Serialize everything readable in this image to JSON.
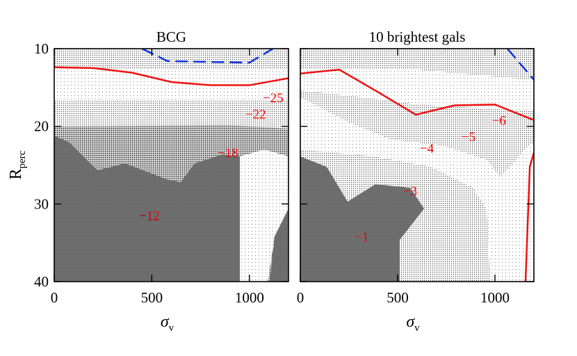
{
  "chart_data": [
    {
      "type": "contour",
      "title": "BCG",
      "xlabel_symbol": "σ",
      "xlabel_subscript": "v",
      "ylabel_main": "R",
      "ylabel_subscript": "perc",
      "xlim": [
        0,
        1200
      ],
      "ylim": [
        40,
        10
      ],
      "xticks": [
        0,
        500,
        1000
      ],
      "yticks": [
        10,
        20,
        30,
        40
      ],
      "show_ytick_labels": true,
      "series": [
        {
          "color": "#ee1111",
          "style": "solid",
          "x": [
            0,
            200,
            400,
            600,
            800,
            1000,
            1200
          ],
          "values": [
            12.4,
            12.5,
            13.1,
            14.3,
            14.7,
            14.7,
            13.8
          ]
        },
        {
          "color": "#1133dd",
          "style": "dashed",
          "x": [
            450,
            580,
            1000,
            1120
          ],
          "values": [
            10,
            11.6,
            11.8,
            10
          ]
        }
      ],
      "annotations": [
        {
          "text": "−25",
          "x": 1121,
          "y": 16.5
        },
        {
          "text": "−22",
          "x": 1032,
          "y": 18.6
        },
        {
          "text": "−18",
          "x": 890,
          "y": 23.6
        },
        {
          "text": "−12",
          "x": 487,
          "y": 31.7
        }
      ]
    },
    {
      "type": "contour",
      "title": "10 brightest gals",
      "xlabel_symbol": "σ",
      "xlabel_subscript": "v",
      "xlim": [
        0,
        1200
      ],
      "ylim": [
        40,
        10
      ],
      "xticks": [
        0,
        500,
        1000
      ],
      "yticks": [
        10,
        20,
        30,
        40
      ],
      "show_ytick_labels": false,
      "series": [
        {
          "color": "#ee1111",
          "style": "solid",
          "x": [
            0,
            200,
            400,
            593,
            793,
            1000,
            1200
          ],
          "values": [
            13.2,
            12.7,
            15.6,
            18.5,
            17.3,
            17.2,
            19.2
          ]
        },
        {
          "color": "#ee1111",
          "style": "solid",
          "x": [
            1200,
            1179,
            1157
          ],
          "values": [
            23.4,
            25.2,
            40
          ]
        },
        {
          "color": "#1133dd",
          "style": "dashed",
          "x": [
            1064,
            1200
          ],
          "values": [
            10,
            14.0
          ]
        }
      ],
      "annotations": [
        {
          "text": "−6",
          "x": 1021,
          "y": 19.4
        },
        {
          "text": "−5",
          "x": 864,
          "y": 21.5
        },
        {
          "text": "−4",
          "x": 650,
          "y": 23
        },
        {
          "text": "−3",
          "x": 564,
          "y": 28.5
        },
        {
          "text": "−1",
          "x": 314,
          "y": 34.4
        }
      ]
    }
  ]
}
